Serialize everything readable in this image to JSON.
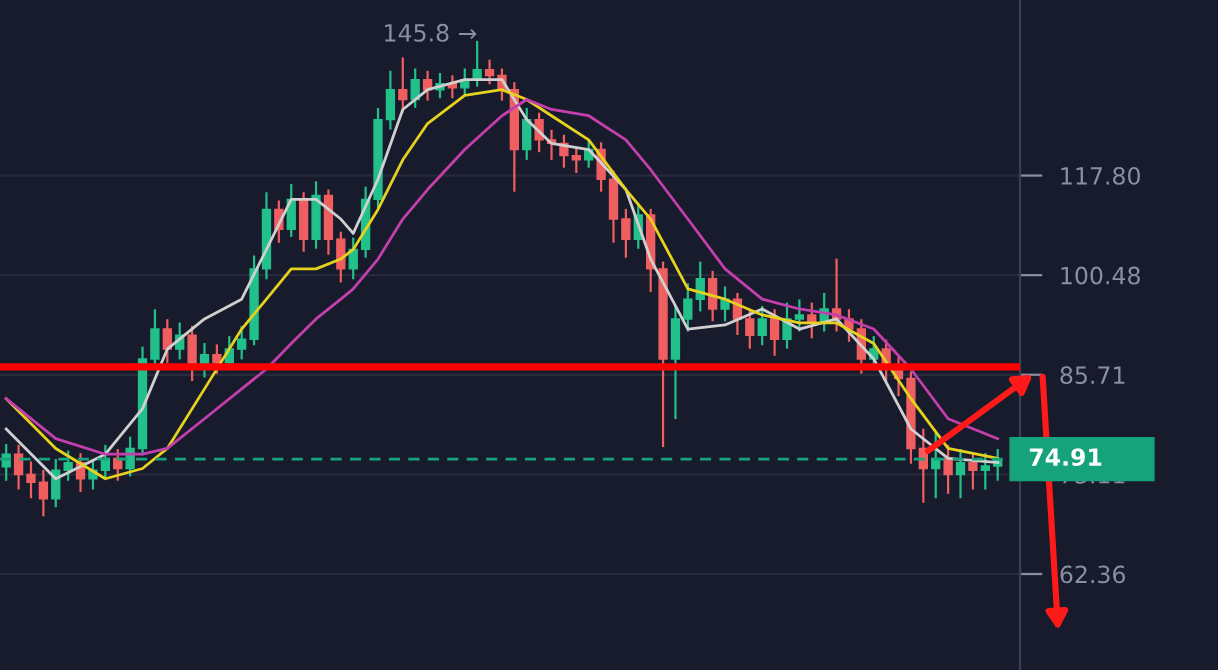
{
  "chart_data": {
    "type": "candlestick",
    "categories": [
      null,
      null,
      null,
      null,
      null,
      null,
      null,
      null,
      null,
      null,
      null,
      null,
      null,
      null,
      null,
      null,
      null,
      null,
      null,
      null,
      null,
      null,
      null,
      null,
      null,
      null,
      null,
      null,
      null,
      null,
      null,
      null,
      null,
      null,
      null,
      null,
      null,
      null,
      null,
      null,
      null,
      null,
      null,
      null,
      null,
      null,
      null,
      null,
      null,
      null,
      null,
      null,
      null,
      null,
      null,
      null,
      null,
      null,
      null,
      null,
      null,
      null,
      null,
      null,
      null,
      null,
      null,
      null,
      null,
      null,
      null,
      null,
      null,
      null,
      null,
      null,
      null,
      null,
      null,
      null,
      null
    ],
    "ohlc": [
      [
        74.0,
        76.6,
        72.5,
        75.5
      ],
      [
        75.5,
        76.5,
        71.5,
        73.1
      ],
      [
        73.1,
        74.5,
        70.5,
        72.2
      ],
      [
        72.2,
        73.5,
        68.5,
        70.3
      ],
      [
        70.3,
        74.8,
        69.5,
        73.6
      ],
      [
        73.6,
        75.8,
        72.5,
        74.5
      ],
      [
        74.5,
        75.5,
        71.2,
        72.6
      ],
      [
        72.6,
        74.8,
        71.5,
        73.6
      ],
      [
        73.6,
        76.5,
        72.8,
        75.0
      ],
      [
        75.0,
        76.0,
        72.5,
        73.8
      ],
      [
        73.8,
        77.5,
        73.0,
        76.2
      ],
      [
        76.2,
        89.5,
        75.5,
        87.9
      ],
      [
        87.9,
        95.0,
        86.5,
        92.2
      ],
      [
        92.2,
        93.5,
        87.5,
        89.3
      ],
      [
        89.3,
        93.0,
        88.0,
        91.3
      ],
      [
        91.3,
        92.5,
        85.0,
        86.5
      ],
      [
        86.5,
        90.0,
        85.5,
        88.5
      ],
      [
        88.5,
        89.8,
        86.0,
        87.4
      ],
      [
        87.4,
        91.0,
        86.5,
        89.3
      ],
      [
        89.3,
        92.5,
        88.0,
        90.7
      ],
      [
        90.7,
        103.5,
        90.0,
        101.5
      ],
      [
        101.5,
        114.5,
        100.0,
        111.6
      ],
      [
        111.6,
        113.0,
        106.0,
        108.1
      ],
      [
        108.1,
        116.0,
        107.0,
        113.4
      ],
      [
        113.4,
        114.5,
        104.5,
        106.4
      ],
      [
        106.4,
        116.5,
        105.0,
        114.1
      ],
      [
        114.1,
        115.0,
        104.0,
        106.4
      ],
      [
        106.4,
        107.5,
        99.5,
        101.5
      ],
      [
        101.5,
        106.5,
        100.0,
        104.7
      ],
      [
        104.7,
        115.5,
        103.5,
        113.4
      ],
      [
        113.4,
        131.0,
        112.0,
        128.8
      ],
      [
        128.8,
        139.0,
        127.0,
        135.1
      ],
      [
        135.1,
        142.0,
        130.5,
        133.0
      ],
      [
        133.0,
        139.5,
        131.5,
        137.3
      ],
      [
        137.3,
        139.0,
        133.0,
        135.1
      ],
      [
        135.1,
        138.5,
        133.5,
        136.4
      ],
      [
        136.4,
        138.0,
        133.5,
        135.5
      ],
      [
        135.5,
        139.5,
        134.0,
        137.3
      ],
      [
        137.3,
        145.8,
        136.0,
        139.5
      ],
      [
        139.5,
        141.5,
        136.5,
        138.2
      ],
      [
        138.2,
        139.5,
        133.0,
        135.1
      ],
      [
        135.1,
        136.5,
        115.0,
        122.8
      ],
      [
        122.8,
        131.0,
        121.0,
        128.8
      ],
      [
        128.8,
        130.0,
        122.5,
        124.7
      ],
      [
        124.7,
        126.5,
        121.0,
        124.0
      ],
      [
        124.0,
        125.5,
        119.5,
        121.6
      ],
      [
        121.6,
        123.0,
        118.5,
        120.8
      ],
      [
        120.8,
        124.5,
        119.5,
        122.8
      ],
      [
        122.8,
        124.0,
        115.0,
        117.1
      ],
      [
        117.1,
        118.5,
        106.0,
        109.9
      ],
      [
        109.9,
        111.5,
        103.5,
        106.4
      ],
      [
        106.4,
        112.5,
        105.0,
        110.6
      ],
      [
        110.6,
        111.5,
        98.0,
        101.5
      ],
      [
        101.5,
        102.5,
        76.5,
        87.9
      ],
      [
        87.9,
        95.5,
        80.0,
        93.7
      ],
      [
        93.7,
        99.0,
        92.0,
        96.7
      ],
      [
        96.7,
        102.5,
        95.0,
        99.9
      ],
      [
        99.9,
        101.0,
        93.5,
        95.2
      ],
      [
        95.2,
        98.5,
        93.5,
        96.7
      ],
      [
        96.7,
        97.5,
        91.5,
        93.7
      ],
      [
        93.7,
        95.0,
        89.5,
        91.3
      ],
      [
        91.3,
        95.5,
        90.0,
        93.7
      ],
      [
        93.7,
        95.0,
        88.5,
        90.7
      ],
      [
        90.7,
        96.0,
        89.5,
        93.7
      ],
      [
        93.7,
        96.5,
        92.0,
        94.3
      ],
      [
        94.3,
        96.0,
        91.0,
        93.1
      ],
      [
        93.1,
        97.5,
        92.0,
        95.2
      ],
      [
        95.2,
        103.0,
        92.0,
        93.7
      ],
      [
        93.7,
        95.0,
        90.5,
        92.2
      ],
      [
        92.2,
        93.5,
        86.0,
        87.9
      ],
      [
        87.9,
        91.0,
        86.5,
        89.3
      ],
      [
        89.3,
        90.5,
        85.0,
        86.5
      ],
      [
        86.5,
        88.0,
        83.0,
        85.2
      ],
      [
        85.2,
        86.0,
        74.5,
        76.2
      ],
      [
        76.2,
        78.5,
        70.0,
        73.8
      ],
      [
        73.8,
        78.0,
        70.5,
        75.0
      ],
      [
        75.0,
        76.5,
        71.0,
        73.1
      ],
      [
        73.1,
        76.0,
        70.5,
        74.5
      ],
      [
        74.5,
        75.5,
        71.5,
        73.6
      ],
      [
        73.6,
        75.5,
        71.5,
        74.1
      ],
      [
        74.1,
        76.0,
        72.5,
        74.91
      ]
    ],
    "colors": [
      "#22c08a",
      "#ef5f5f",
      "#ef5f5f",
      "#ef5f5f",
      "#22c08a",
      "#22c08a",
      "#ef5f5f",
      "#22c08a",
      "#22c08a",
      "#ef5f5f",
      "#22c08a",
      "#22c08a",
      "#22c08a",
      "#ef5f5f",
      "#22c08a",
      "#ef5f5f",
      "#22c08a",
      "#ef5f5f",
      "#22c08a",
      "#22c08a",
      "#22c08a",
      "#22c08a",
      "#ef5f5f",
      "#22c08a",
      "#ef5f5f",
      "#22c08a",
      "#ef5f5f",
      "#ef5f5f",
      "#22c08a",
      "#22c08a",
      "#22c08a",
      "#22c08a",
      "#ef5f5f",
      "#22c08a",
      "#ef5f5f",
      "#22c08a",
      "#ef5f5f",
      "#22c08a",
      "#22c08a",
      "#ef5f5f",
      "#ef5f5f",
      "#ef5f5f",
      "#22c08a",
      "#ef5f5f",
      "#ef5f5f",
      "#ef5f5f",
      "#ef5f5f",
      "#22c08a",
      "#ef5f5f",
      "#ef5f5f",
      "#ef5f5f",
      "#22c08a",
      "#ef5f5f",
      "#ef5f5f",
      "#22c08a",
      "#22c08a",
      "#22c08a",
      "#ef5f5f",
      "#22c08a",
      "#ef5f5f",
      "#ef5f5f",
      "#22c08a",
      "#ef5f5f",
      "#22c08a",
      "#22c08a",
      "#ef5f5f",
      "#22c08a",
      "#ef5f5f",
      "#ef5f5f",
      "#ef5f5f",
      "#22c08a",
      "#ef5f5f",
      "#ef5f5f",
      "#ef5f5f",
      "#ef5f5f",
      "#22c08a",
      "#ef5f5f",
      "#22c08a",
      "#ef5f5f",
      "#22c08a",
      "#22c08a"
    ],
    "series": [
      {
        "type": "line",
        "color": "#d0d0d0",
        "values": [
          78.6,
          null,
          null,
          null,
          72.6,
          null,
          null,
          null,
          75.5,
          null,
          null,
          81.2,
          null,
          89.3,
          null,
          null,
          93.7,
          null,
          null,
          96.7,
          null,
          104.7,
          null,
          113.4,
          null,
          113.4,
          null,
          109.9,
          107.4,
          null,
          117.1,
          null,
          130.9,
          null,
          135.1,
          null,
          null,
          137.3,
          null,
          null,
          137.3,
          null,
          128.8,
          null,
          124.0,
          null,
          null,
          122.8,
          null,
          null,
          115.2,
          null,
          103.1,
          null,
          null,
          92.2,
          null,
          null,
          92.8,
          null,
          null,
          95.2,
          null,
          null,
          92.2,
          null,
          null,
          93.7,
          null,
          null,
          87.9,
          null,
          null,
          78.6,
          null,
          null,
          75.0,
          null,
          null,
          null,
          74.5
        ]
      },
      {
        "type": "line",
        "color": "#e6d21e",
        "values": [
          82.5,
          null,
          null,
          null,
          76.2,
          null,
          null,
          null,
          72.6,
          null,
          null,
          73.8,
          null,
          76.2,
          null,
          null,
          83.8,
          null,
          null,
          92.2,
          null,
          96.7,
          null,
          101.5,
          null,
          101.5,
          null,
          103.1,
          104.7,
          null,
          111.6,
          null,
          120.8,
          null,
          128.0,
          null,
          null,
          133.9,
          null,
          null,
          135.1,
          null,
          133.0,
          null,
          129.6,
          null,
          null,
          124.7,
          null,
          null,
          115.2,
          null,
          109.9,
          null,
          null,
          98.3,
          null,
          null,
          96.7,
          null,
          null,
          94.3,
          null,
          null,
          93.1,
          null,
          null,
          93.1,
          null,
          null,
          90.1,
          null,
          null,
          82.5,
          null,
          null,
          76.2,
          null,
          null,
          null,
          75.0
        ]
      },
      {
        "type": "line",
        "color": "#c43fae",
        "values": [
          82.5,
          null,
          null,
          null,
          77.4,
          null,
          null,
          null,
          75.5,
          null,
          null,
          75.5,
          null,
          76.2,
          null,
          null,
          79.9,
          null,
          null,
          83.8,
          null,
          86.5,
          null,
          90.1,
          null,
          93.7,
          null,
          96.7,
          98.3,
          null,
          103.1,
          null,
          109.9,
          null,
          115.2,
          null,
          null,
          122.8,
          null,
          null,
          129.6,
          null,
          133.0,
          null,
          130.9,
          null,
          null,
          129.6,
          null,
          null,
          124.7,
          null,
          118.9,
          null,
          null,
          109.9,
          null,
          null,
          101.5,
          null,
          null,
          96.7,
          null,
          null,
          95.2,
          null,
          null,
          94.3,
          null,
          null,
          92.2,
          null,
          null,
          86.5,
          null,
          null,
          79.9,
          null,
          null,
          null,
          77.4
        ]
      }
    ],
    "log": "y",
    "ylim": [
      53.5,
      155.9
    ],
    "yticks": [
      62.36,
      73.11,
      85.71,
      100.48,
      {
        "value": 117.8,
        "label": "117.80"
      }
    ],
    "grid": "y",
    "tick_labels": "y",
    "ref_lines": [
      {
        "axis": "y",
        "value": 86.8,
        "label": null,
        "color": "#ff0000",
        "line_style": "solid"
      },
      {
        "axis": "y",
        "value": 74.91,
        "label": "74.91",
        "color": "#16a37c",
        "line_style": "dashed"
      }
    ],
    "annotations": [
      "145.8 →"
    ]
  }
}
